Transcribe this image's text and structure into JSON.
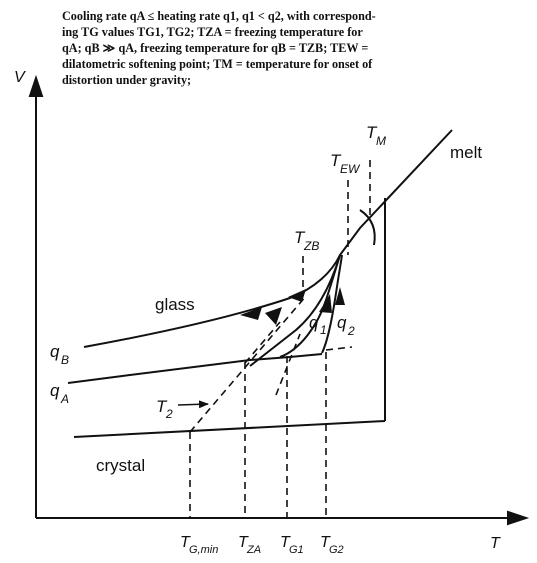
{
  "caption": {
    "line1": "Cooling rate qA ≤ heating rate q1, q1 < q2, with correspond-",
    "line2": "ing TG values TG1, TG2; TZA = freezing temperature for",
    "line3": "qA; qB ≫ qA, freezing temperature for qB = TZB; TEW =",
    "line4": "dilatometric softening point; TM = temperature for onset of",
    "line5": "distortion under gravity;"
  },
  "axes": {
    "y_label": "V",
    "x_label": "T"
  },
  "curves": {
    "melt": "melt",
    "glass": "glass",
    "crystal": "crystal",
    "qB": "q",
    "qB_sub": "B",
    "qA": "q",
    "qA_sub": "A",
    "q1": "q",
    "q1_sub": "1",
    "q2": "q",
    "q2_sub": "2"
  },
  "markers": {
    "TM": "T",
    "TM_sub": "M",
    "TEW": "T",
    "TEW_sub": "EW",
    "TZB": "T",
    "TZB_sub": "ZB",
    "T2": "T",
    "T2_sub": "2"
  },
  "x_ticks": [
    {
      "main": "T",
      "sub": "G,min"
    },
    {
      "main": "T",
      "sub": "ZA"
    },
    {
      "main": "T",
      "sub": "G1"
    },
    {
      "main": "T",
      "sub": "G2"
    }
  ],
  "colors": {
    "ink": "#111111",
    "background": "#ffffff"
  }
}
